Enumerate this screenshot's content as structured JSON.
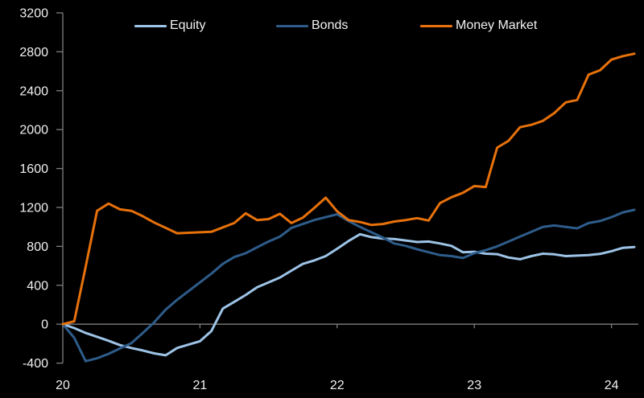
{
  "chart_data": {
    "type": "line",
    "title": "",
    "x_axis": {
      "label": "",
      "tick_labels": [
        "20",
        "21",
        "22",
        "23",
        "24"
      ],
      "tick_values": [
        20,
        21,
        22,
        23,
        24
      ],
      "points_start_year": 20,
      "points_per_year": 12
    },
    "y_axis": {
      "label": "",
      "tick_values": [
        3200,
        2800,
        2400,
        2000,
        1600,
        1200,
        800,
        400,
        0,
        -400
      ],
      "min": -400,
      "max": 3200
    },
    "legend_position": "top",
    "grid": false,
    "series": [
      {
        "name": "Equity",
        "color": "#9DC3E6",
        "values": [
          0,
          -40,
          -90,
          -130,
          -170,
          -215,
          -245,
          -270,
          -300,
          -320,
          -245,
          -210,
          -175,
          -70,
          160,
          230,
          300,
          380,
          430,
          480,
          550,
          620,
          655,
          700,
          775,
          855,
          925,
          895,
          880,
          875,
          860,
          845,
          850,
          830,
          805,
          740,
          745,
          725,
          720,
          685,
          668,
          700,
          725,
          718,
          700,
          705,
          710,
          722,
          750,
          785,
          793
        ]
      },
      {
        "name": "Bonds",
        "color": "#2E5C8A",
        "values": [
          0,
          -140,
          -380,
          -350,
          -305,
          -250,
          -195,
          -90,
          20,
          150,
          250,
          340,
          430,
          520,
          620,
          690,
          730,
          790,
          850,
          900,
          990,
          1030,
          1070,
          1100,
          1130,
          1060,
          1000,
          945,
          890,
          830,
          805,
          770,
          740,
          710,
          700,
          680,
          730,
          760,
          800,
          850,
          900,
          950,
          1000,
          1015,
          1000,
          985,
          1040,
          1060,
          1100,
          1150,
          1175
        ]
      },
      {
        "name": "Money Market",
        "color": "#E7710B",
        "values": [
          0,
          30,
          590,
          1165,
          1240,
          1180,
          1165,
          1110,
          1045,
          990,
          935,
          940,
          945,
          950,
          995,
          1040,
          1140,
          1070,
          1080,
          1135,
          1040,
          1095,
          1195,
          1300,
          1160,
          1070,
          1050,
          1020,
          1030,
          1055,
          1070,
          1090,
          1065,
          1245,
          1305,
          1350,
          1420,
          1410,
          1815,
          1885,
          2025,
          2050,
          2090,
          2170,
          2280,
          2305,
          2565,
          2610,
          2720,
          2755,
          2780
        ]
      }
    ]
  },
  "style": {
    "background": "#000000",
    "axis_color": "#7F7F7F",
    "text_color": "#F2F2F2",
    "tick_font_size": 16,
    "legend_font_size": 16
  },
  "legend": {
    "items": [
      {
        "label": "Equity"
      },
      {
        "label": "Bonds"
      },
      {
        "label": "Money Market"
      }
    ]
  }
}
